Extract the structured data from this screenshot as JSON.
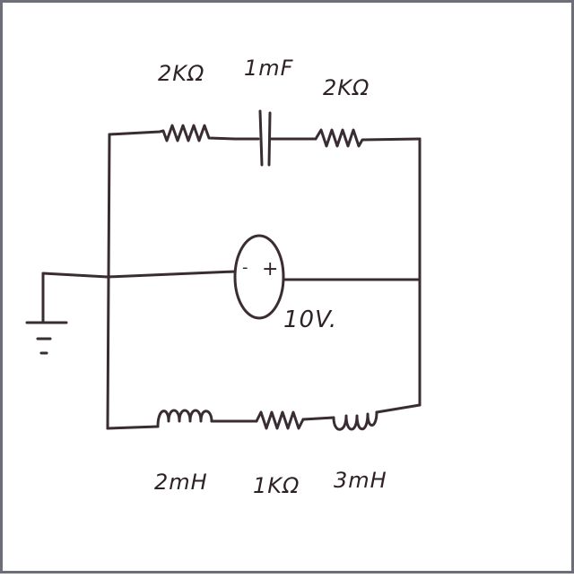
{
  "components": {
    "top_resistor_left": "2KΩ",
    "top_capacitor": "1mF",
    "top_resistor_right": "2KΩ",
    "voltage_source": "10V.",
    "source_minus": "-",
    "source_plus": "+",
    "bottom_inductor_left": "2mH",
    "bottom_resistor": "1KΩ",
    "bottom_inductor_right": "3mH"
  },
  "colors": {
    "ink": "#3a2c33",
    "border": "#6c6f78",
    "paper": "#ffffff"
  }
}
